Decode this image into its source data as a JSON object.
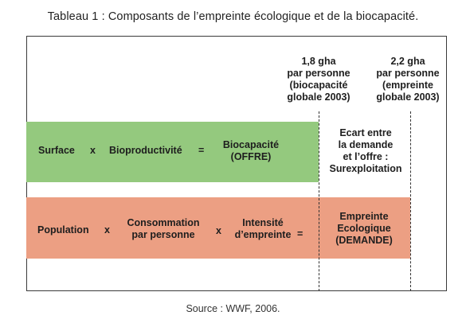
{
  "title": "Tableau 1 : Composants de l’empreinte écologique et de la biocapacité.",
  "headers": {
    "biocapacity": [
      "1,8 gha",
      "par personne",
      "(biocapacité",
      "globale 2003)"
    ],
    "footprint": [
      "2,2 gha",
      "par personne",
      "(empreinte",
      "globale 2003)"
    ]
  },
  "supply_row": {
    "term1": "Surface",
    "op1": "x",
    "term2": "Bioproductivité",
    "op2": "=",
    "result": [
      "Biocapacité",
      "(OFFRE)"
    ]
  },
  "gap": [
    "Ecart entre",
    "la demande",
    "et l’offre :",
    "Surexploitation"
  ],
  "demand_row": {
    "term1": "Population",
    "op1": "x",
    "term2": [
      "Consommation",
      "par personne"
    ],
    "op2": "x",
    "term3": [
      "Intensité",
      "d’empreinte"
    ],
    "op3": "=",
    "result": [
      "Empreinte",
      "Ecologique",
      "(DEMANDE)"
    ]
  },
  "colors": {
    "supply_band": "#94c97e",
    "demand_band": "#ec9f83"
  },
  "source": "Source : WWF, 2006."
}
